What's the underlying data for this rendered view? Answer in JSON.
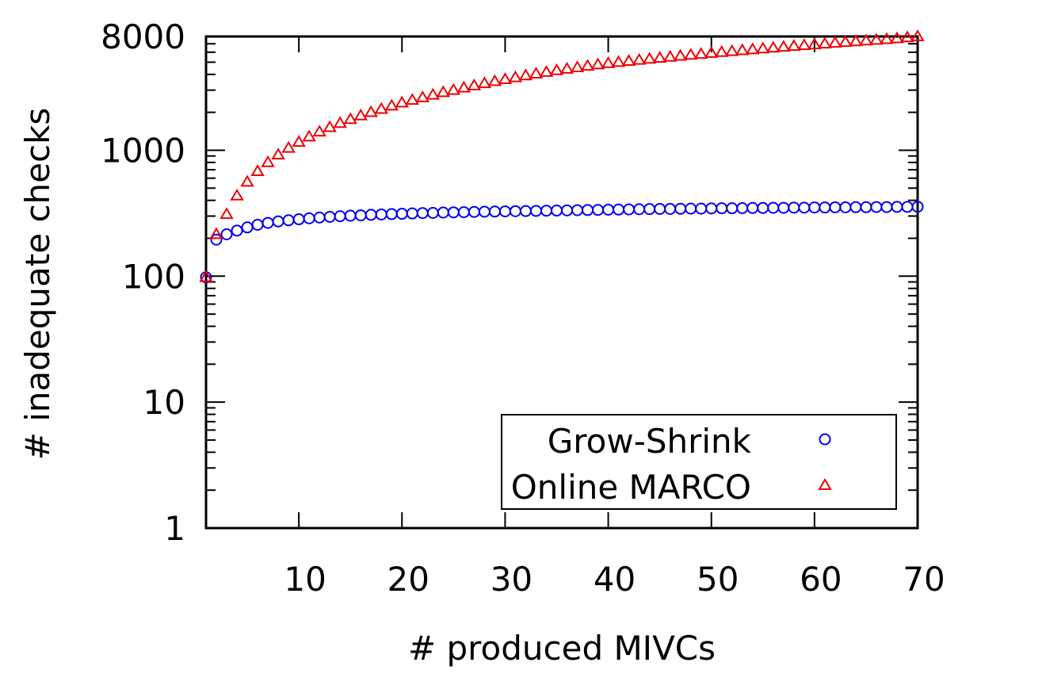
{
  "chart_data": {
    "type": "scatter",
    "xlabel": "# produced MIVCs",
    "ylabel": "# inadequate checks",
    "yscale": "log",
    "xlim": [
      1,
      70
    ],
    "ylim": [
      1,
      8000
    ],
    "x_ticks": [
      "10",
      "20",
      "30",
      "40",
      "50",
      "60",
      "70"
    ],
    "y_ticks": [
      "1",
      "10",
      "100",
      "1000",
      "8000"
    ],
    "legend_position": "bottom-right",
    "grid": false,
    "series": [
      {
        "name": "Grow-Shrink",
        "marker": "circle",
        "color": "#0000ee",
        "x": [
          1,
          2,
          3,
          4,
          5,
          6,
          7,
          8,
          9,
          10,
          11,
          12,
          13,
          14,
          15,
          16,
          17,
          18,
          19,
          20,
          21,
          22,
          23,
          24,
          25,
          26,
          27,
          28,
          29,
          30,
          31,
          32,
          33,
          34,
          35,
          36,
          37,
          38,
          39,
          40,
          41,
          42,
          43,
          44,
          45,
          46,
          47,
          48,
          49,
          50,
          51,
          52,
          53,
          54,
          55,
          56,
          57,
          58,
          59,
          60,
          61,
          62,
          63,
          64,
          65,
          66,
          67,
          68,
          69,
          70
        ],
        "values": [
          98,
          195,
          215,
          230,
          244,
          256,
          265,
          272,
          278,
          283,
          288,
          292,
          296,
          299,
          302,
          304,
          307,
          309,
          311,
          313,
          315,
          317,
          318,
          320,
          321,
          322,
          324,
          325,
          326,
          327,
          328,
          329,
          330,
          331,
          332,
          333,
          334,
          335,
          336,
          337,
          338,
          339,
          340,
          341,
          342,
          342,
          343,
          344,
          344,
          345,
          346,
          346,
          347,
          348,
          348,
          349,
          349,
          350,
          350,
          351,
          351,
          352,
          352,
          353,
          353,
          354,
          354,
          355,
          355,
          356
        ]
      },
      {
        "name": "Online MARCO",
        "marker": "triangle",
        "color": "#ee0000",
        "x": [
          1,
          2,
          3,
          4,
          5,
          6,
          7,
          8,
          9,
          10,
          11,
          12,
          13,
          14,
          15,
          16,
          17,
          18,
          19,
          20,
          21,
          22,
          23,
          24,
          25,
          26,
          27,
          28,
          29,
          30,
          31,
          32,
          33,
          34,
          35,
          36,
          37,
          38,
          39,
          40,
          41,
          42,
          43,
          44,
          45,
          46,
          47,
          48,
          49,
          50,
          51,
          52,
          53,
          54,
          55,
          56,
          57,
          58,
          59,
          60,
          61,
          62,
          63,
          64,
          65,
          66,
          67,
          68,
          69,
          70
        ],
        "values": [
          98,
          215,
          310,
          435,
          560,
          680,
          800,
          920,
          1040,
          1160,
          1280,
          1400,
          1520,
          1640,
          1760,
          1880,
          2000,
          2120,
          2250,
          2380,
          2500,
          2620,
          2750,
          2880,
          3000,
          3130,
          3260,
          3390,
          3520,
          3650,
          3780,
          3910,
          4040,
          4170,
          4300,
          4420,
          4540,
          4660,
          4780,
          4900,
          5000,
          5100,
          5200,
          5300,
          5400,
          5500,
          5600,
          5700,
          5800,
          5900,
          6000,
          6100,
          6200,
          6300,
          6400,
          6500,
          6600,
          6700,
          6800,
          6900,
          7000,
          7100,
          7200,
          7300,
          7400,
          7500,
          7600,
          7700,
          7850,
          8000
        ]
      }
    ]
  }
}
